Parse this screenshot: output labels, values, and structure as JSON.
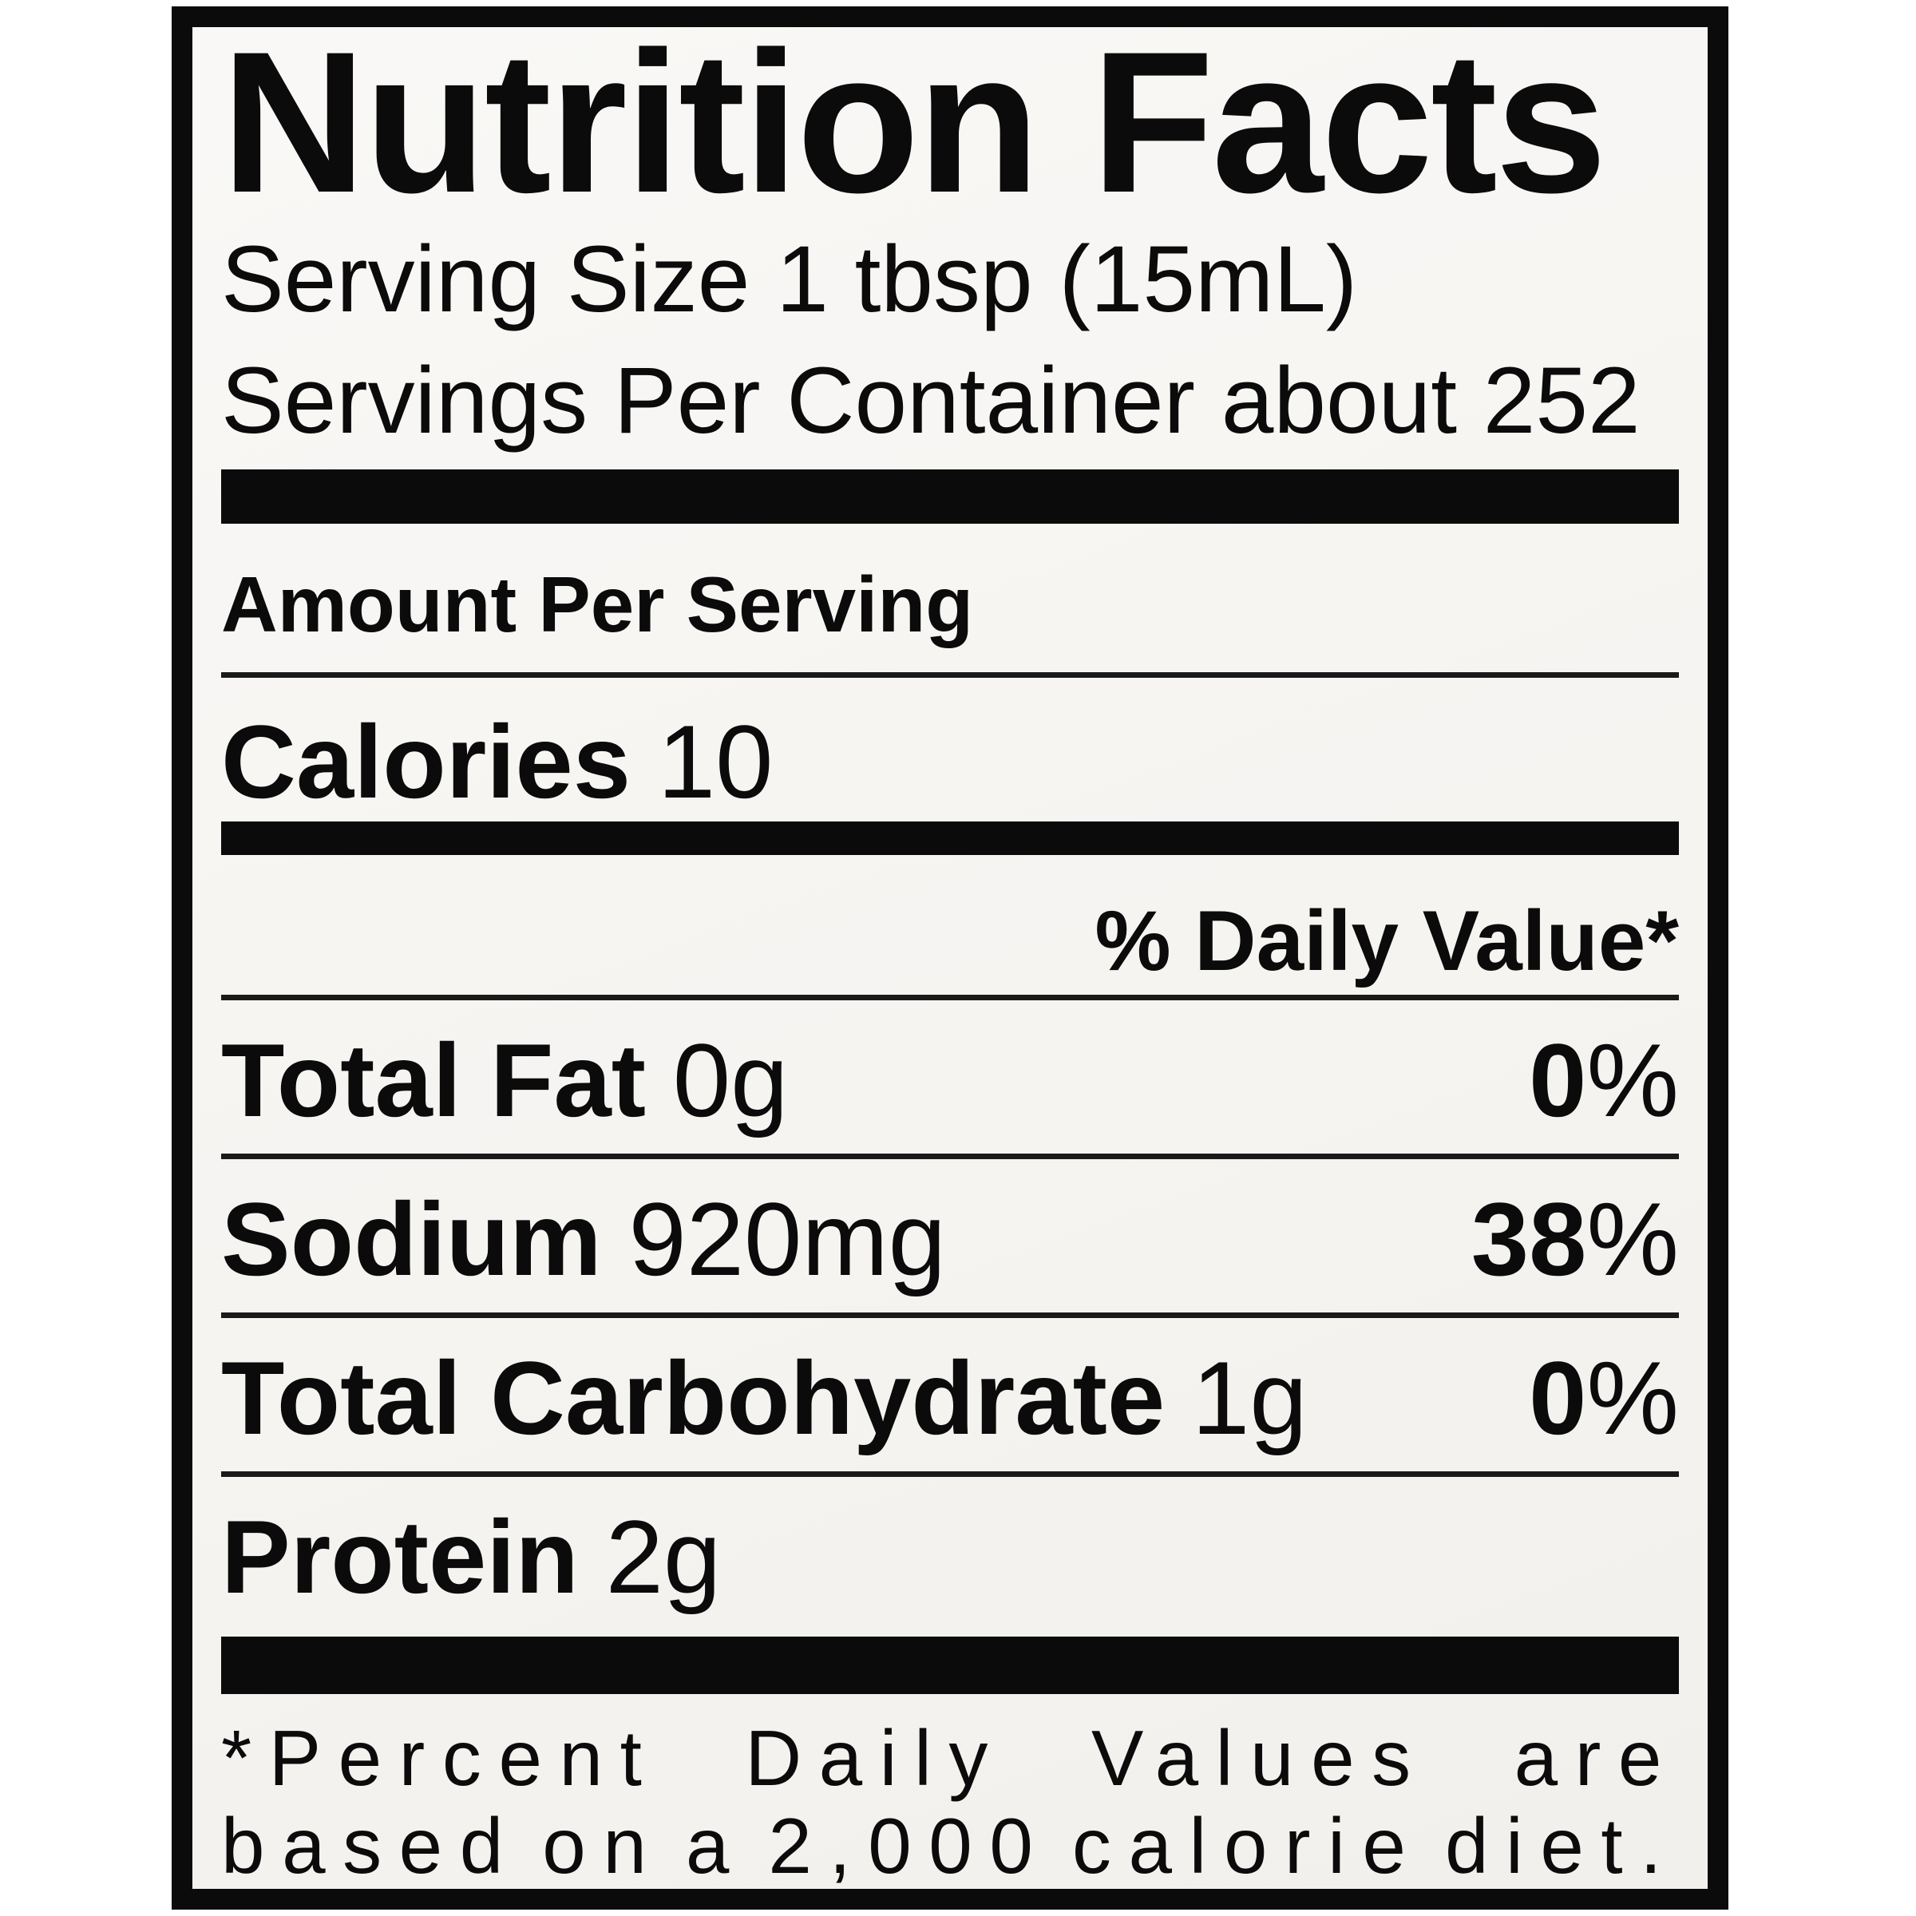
{
  "label": {
    "title": "Nutrition Facts",
    "serving_size": "Serving Size 1 tbsp (15mL)",
    "servings_per_container": "Servings Per Container about 252",
    "amount_per_serving": "Amount Per Serving",
    "calories_label": "Calories",
    "calories_value": "10",
    "daily_value_header": "% Daily Value*",
    "nutrients": [
      {
        "name": "Total Fat",
        "amount": "0g",
        "dv": "0",
        "unit": "%"
      },
      {
        "name": "Sodium",
        "amount": "920mg",
        "dv": "38",
        "unit": "%"
      },
      {
        "name": "Total Carbohydrate",
        "amount": "1g",
        "dv": "0",
        "unit": "%"
      },
      {
        "name": "Protein",
        "amount": "2g",
        "dv": "",
        "unit": ""
      }
    ],
    "footnote_line1": "*Percent Daily Values are",
    "footnote_line2": "based on a 2,000 calorie diet."
  },
  "colors": {
    "ink": "#0b0b0b",
    "paper": "#f7f5f2",
    "page": "#ffffff"
  }
}
